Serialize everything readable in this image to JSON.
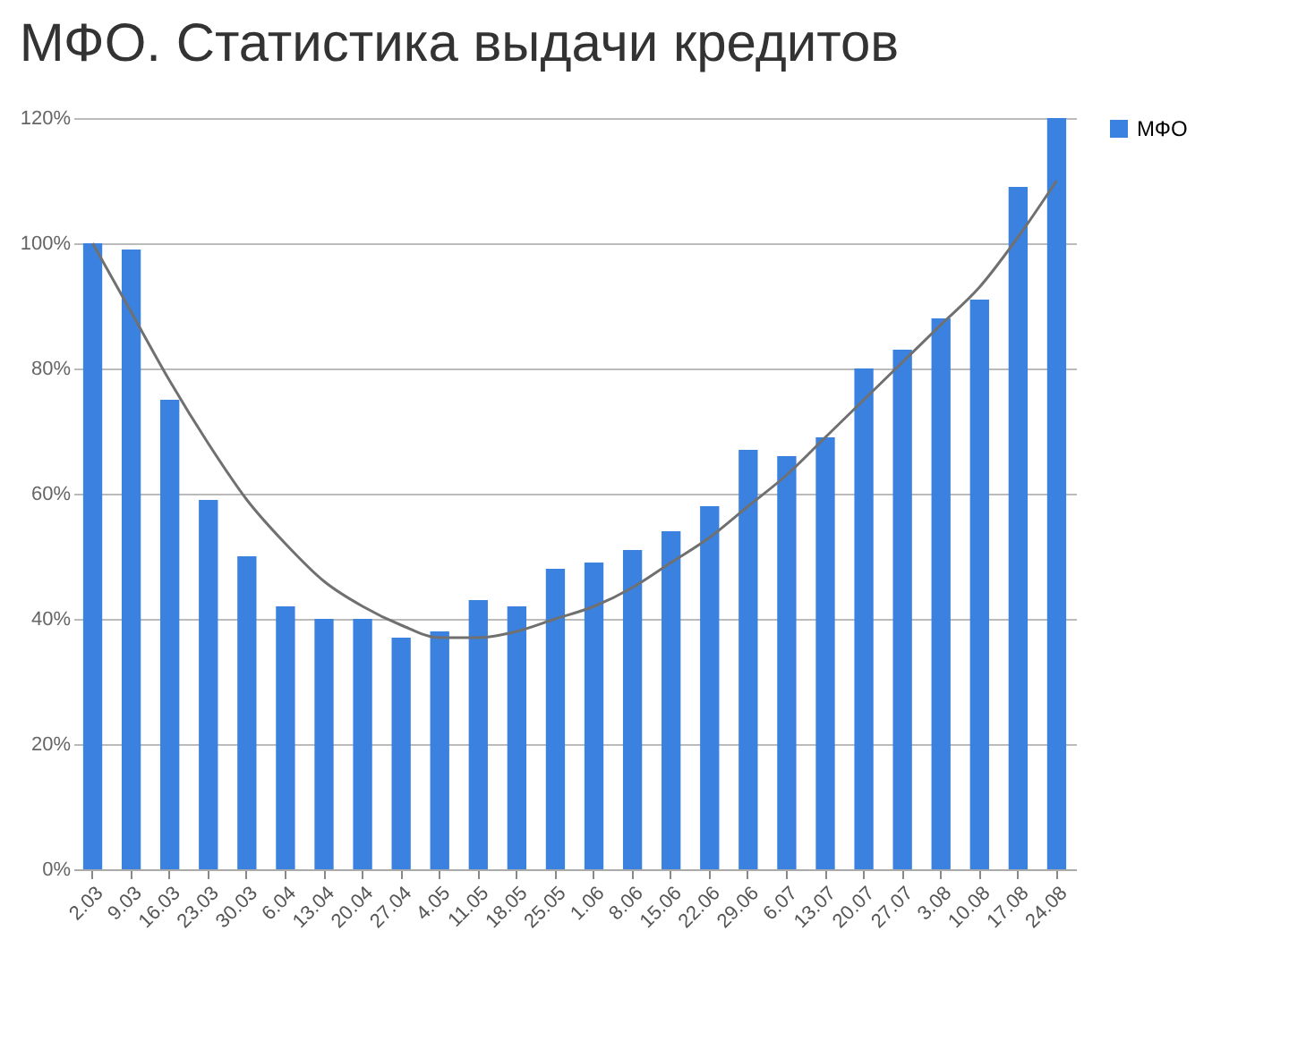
{
  "chart_data": {
    "type": "bar",
    "title": "МФО. Статистика выдачи кредитов",
    "categories": [
      "2.03",
      "9.03",
      "16.03",
      "23.03",
      "30.03",
      "6.04",
      "13.04",
      "20.04",
      "27.04",
      "4.05",
      "11.05",
      "18.05",
      "25.05",
      "1.06",
      "8.06",
      "15.06",
      "22.06",
      "29.06",
      "6.07",
      "13.07",
      "20.07",
      "27.07",
      "3.08",
      "10.08",
      "17.08",
      "24.08"
    ],
    "series": [
      {
        "name": "МФО",
        "color": "#3b82e0",
        "values": [
          100,
          99,
          75,
          59,
          50,
          42,
          40,
          40,
          37,
          38,
          43,
          42,
          48,
          49,
          51,
          54,
          58,
          67,
          66,
          69,
          80,
          83,
          88,
          91,
          109,
          120
        ]
      },
      {
        "type": "line",
        "color": "#707070",
        "values": [
          100,
          89,
          78,
          68,
          59,
          52,
          46,
          42,
          39,
          37,
          37,
          38,
          40,
          42,
          45,
          49,
          53,
          58,
          63,
          69,
          75,
          81,
          87,
          93,
          101,
          110
        ]
      }
    ],
    "ylim": [
      0,
      120
    ],
    "yticks": [
      {
        "value": 0,
        "label": "0%"
      },
      {
        "value": 20,
        "label": "20%"
      },
      {
        "value": 40,
        "label": "40%"
      },
      {
        "value": 60,
        "label": "60%"
      },
      {
        "value": 80,
        "label": "80%"
      },
      {
        "value": 100,
        "label": "100%"
      },
      {
        "value": 120,
        "label": "120%"
      }
    ],
    "grid": "y",
    "legend": "right"
  }
}
